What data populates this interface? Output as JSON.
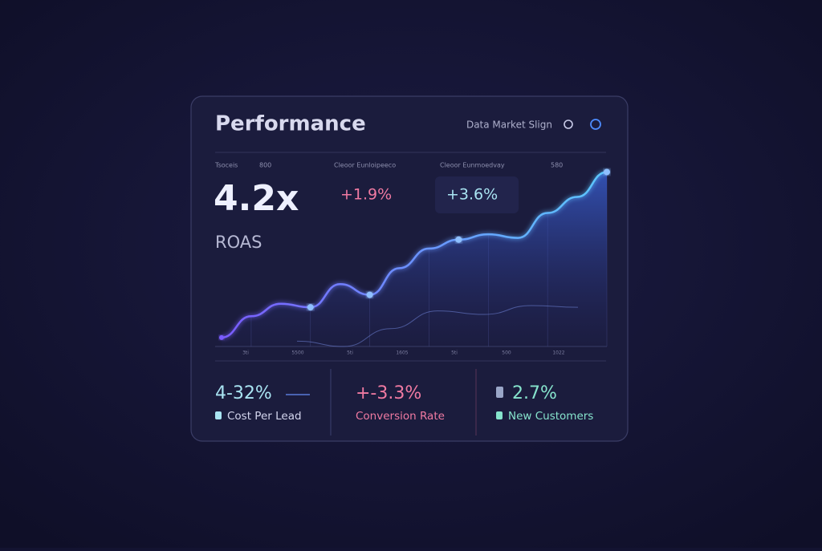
{
  "header": {
    "title": "Performance",
    "right_text": "Data Market Slign"
  },
  "top_labels": [
    "Tsoceis",
    "800",
    "Cleoor Eunloipeeco",
    "Cleoor Eunmoedvay",
    "580"
  ],
  "headline": {
    "value": "4.2x",
    "label": "ROAS"
  },
  "deltas": [
    "+1.9%",
    "+3.6%"
  ],
  "chart": {
    "type": "line",
    "ylim": [
      0,
      100
    ],
    "values": [
      5,
      17,
      24,
      22,
      35,
      29,
      44,
      55,
      60,
      63,
      61,
      75,
      84,
      98
    ],
    "markers": [
      3,
      5,
      8,
      13
    ],
    "secondary": [
      3,
      0,
      10,
      20,
      18,
      23,
      22
    ],
    "x_labels": [
      "3ti",
      "5500",
      "5ti",
      "1605",
      "5ti",
      "500",
      "1022"
    ]
  },
  "stats": [
    {
      "value": "4-32%",
      "label": "Cost Per Lead",
      "color": "#a9e4f2"
    },
    {
      "value": "+-3.3%",
      "label": "Conversion Rate",
      "color": "#f07aa2"
    },
    {
      "value": "2.7%",
      "label": "New Customers",
      "color": "#86e3cc"
    }
  ]
}
